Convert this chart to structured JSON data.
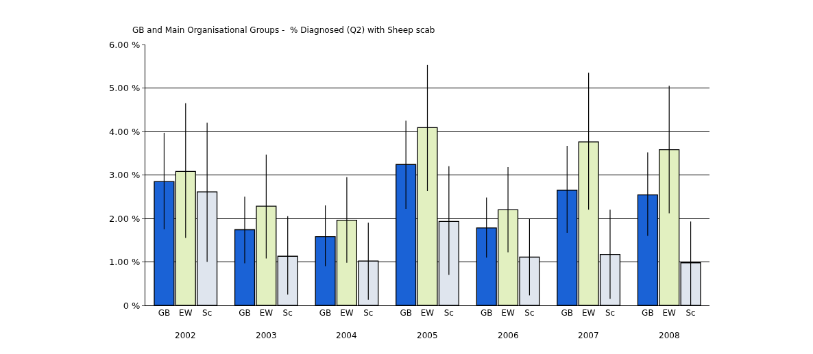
{
  "chart_data": {
    "type": "bar",
    "title": "GB and Main Organisational Groups -  % Diagnosed (Q2) with Sheep scab",
    "categories": [
      "2002",
      "2003",
      "2004",
      "2005",
      "2006",
      "2007",
      "2008"
    ],
    "series": [
      {
        "name": "GB",
        "color": "#1a62d6",
        "values": [
          2.85,
          1.74,
          1.58,
          3.24,
          1.78,
          2.65,
          2.54
        ],
        "errors": [
          [
            1.75,
            3.97
          ],
          [
            0.97,
            2.5
          ],
          [
            0.9,
            2.3
          ],
          [
            2.22,
            4.25
          ],
          [
            1.1,
            2.48
          ],
          [
            1.67,
            3.67
          ],
          [
            1.6,
            3.52
          ]
        ]
      },
      {
        "name": "EW",
        "color": "#e2f0c0",
        "values": [
          3.08,
          2.28,
          1.96,
          4.09,
          2.2,
          3.76,
          3.58
        ],
        "errors": [
          [
            1.55,
            4.65
          ],
          [
            1.08,
            3.47
          ],
          [
            0.98,
            2.95
          ],
          [
            2.63,
            5.53
          ],
          [
            1.22,
            3.18
          ],
          [
            2.2,
            5.35
          ],
          [
            2.12,
            5.05
          ]
        ]
      },
      {
        "name": "Sc",
        "color": "#dfe5ee",
        "values": [
          2.61,
          1.13,
          1.02,
          1.93,
          1.11,
          1.17,
          0.98
        ],
        "errors": [
          [
            1.0,
            4.2
          ],
          [
            0.25,
            2.05
          ],
          [
            0.13,
            1.9
          ],
          [
            0.7,
            3.2
          ],
          [
            0.23,
            2.0
          ],
          [
            0.15,
            2.2
          ],
          [
            0.0,
            1.93
          ]
        ]
      }
    ],
    "ylim": [
      0,
      6
    ],
    "yticks": [
      {
        "value": 0,
        "label": "0 %"
      },
      {
        "value": 1,
        "label": "1.00 %"
      },
      {
        "value": 2,
        "label": "2.00 %"
      },
      {
        "value": 3,
        "label": "3.00 %"
      },
      {
        "value": 4,
        "label": "4.00 %"
      },
      {
        "value": 5,
        "label": "5.00 %"
      },
      {
        "value": 6,
        "label": "6.00 %"
      }
    ],
    "grid": "y"
  }
}
